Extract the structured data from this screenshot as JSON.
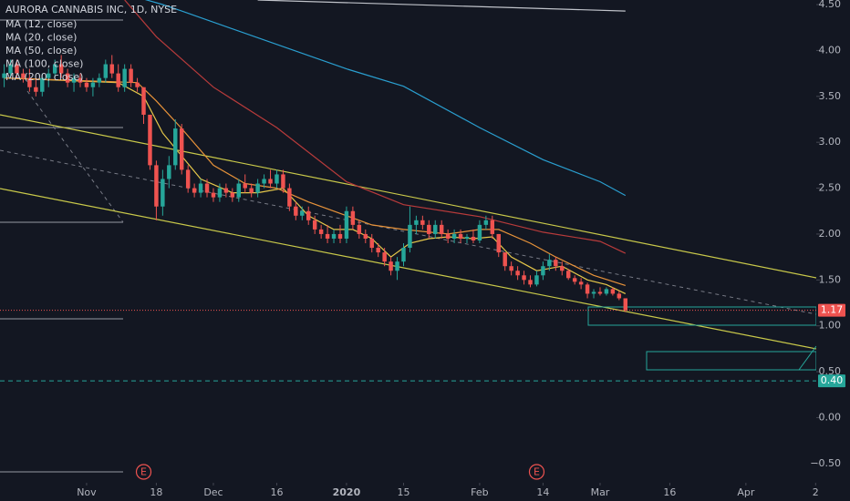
{
  "chart_data": {
    "type": "candlestick",
    "title": "AURORA CANNABIS INC, 1D, NYSE",
    "up_color": "#26a69a",
    "down_color": "#ef5350",
    "xlim": [
      -0.66,
      128.1
    ],
    "ylim": [
      -0.71,
      4.55
    ],
    "xticks": [
      {
        "value": 13,
        "label": "Nov"
      },
      {
        "value": 24,
        "label": "18"
      },
      {
        "value": 33,
        "label": "Dec"
      },
      {
        "value": 43,
        "label": "16"
      },
      {
        "value": 54,
        "label": "2020"
      },
      {
        "value": 63,
        "label": "15"
      },
      {
        "value": 75,
        "label": "Feb"
      },
      {
        "value": 85,
        "label": "14"
      },
      {
        "value": 94,
        "label": "Mar"
      },
      {
        "value": 105,
        "label": "16"
      },
      {
        "value": 117,
        "label": "Apr"
      },
      {
        "value": 128,
        "label": "2"
      }
    ],
    "yticks": [
      {
        "value": 4.5,
        "label": "4.50"
      },
      {
        "value": 4,
        "label": "4.00"
      },
      {
        "value": 3.5,
        "label": "3.50"
      },
      {
        "value": 3,
        "label": "3.00"
      },
      {
        "value": 2.5,
        "label": "2.50"
      },
      {
        "value": 2,
        "label": "2.00"
      },
      {
        "value": 1.5,
        "label": "1.50"
      },
      {
        "value": 1,
        "label": "1.00"
      },
      {
        "value": 0.5,
        "label": "0.50"
      },
      {
        "value": 0,
        "label": "0.00"
      },
      {
        "value": -0.5,
        "label": "−0.50"
      }
    ],
    "price_lines": [
      {
        "value": 1.17,
        "label": "1.17",
        "color": "#ef5350"
      },
      {
        "value": 0.4,
        "label": "0.40",
        "color": "#26a69a"
      }
    ],
    "events": [
      {
        "x": 22,
        "label": "E"
      },
      {
        "x": 84,
        "label": "E"
      }
    ],
    "ohlc": [
      [
        3.7,
        3.85,
        3.6,
        3.75
      ],
      [
        3.75,
        3.9,
        3.7,
        3.85
      ],
      [
        3.85,
        3.9,
        3.7,
        3.75
      ],
      [
        3.75,
        3.8,
        3.65,
        3.7
      ],
      [
        3.7,
        3.8,
        3.55,
        3.6
      ],
      [
        3.6,
        3.7,
        3.5,
        3.55
      ],
      [
        3.55,
        3.75,
        3.5,
        3.7
      ],
      [
        3.7,
        3.8,
        3.6,
        3.75
      ],
      [
        3.75,
        3.9,
        3.7,
        3.85
      ],
      [
        3.85,
        3.95,
        3.7,
        3.75
      ],
      [
        3.75,
        3.8,
        3.6,
        3.65
      ],
      [
        3.65,
        3.75,
        3.55,
        3.7
      ],
      [
        3.7,
        3.75,
        3.6,
        3.65
      ],
      [
        3.65,
        3.7,
        3.55,
        3.6
      ],
      [
        3.6,
        3.7,
        3.5,
        3.65
      ],
      [
        3.65,
        3.75,
        3.6,
        3.7
      ],
      [
        3.7,
        3.9,
        3.65,
        3.85
      ],
      [
        3.85,
        3.95,
        3.7,
        3.75
      ],
      [
        3.75,
        3.85,
        3.55,
        3.6
      ],
      [
        3.6,
        3.85,
        3.55,
        3.8
      ],
      [
        3.8,
        3.85,
        3.6,
        3.65
      ],
      [
        3.65,
        3.7,
        3.55,
        3.6
      ],
      [
        3.6,
        3.6,
        3.2,
        3.3
      ],
      [
        3.3,
        3.3,
        2.7,
        2.75
      ],
      [
        2.75,
        2.8,
        2.15,
        2.3
      ],
      [
        2.3,
        2.7,
        2.2,
        2.6
      ],
      [
        2.6,
        2.85,
        2.5,
        2.75
      ],
      [
        2.75,
        3.25,
        2.7,
        3.15
      ],
      [
        3.15,
        3.2,
        2.65,
        2.7
      ],
      [
        2.7,
        2.75,
        2.45,
        2.5
      ],
      [
        2.5,
        2.55,
        2.4,
        2.45
      ],
      [
        2.45,
        2.6,
        2.4,
        2.55
      ],
      [
        2.55,
        2.6,
        2.4,
        2.45
      ],
      [
        2.45,
        2.5,
        2.35,
        2.4
      ],
      [
        2.4,
        2.55,
        2.35,
        2.5
      ],
      [
        2.5,
        2.55,
        2.4,
        2.45
      ],
      [
        2.45,
        2.5,
        2.35,
        2.4
      ],
      [
        2.4,
        2.6,
        2.35,
        2.55
      ],
      [
        2.55,
        2.65,
        2.45,
        2.5
      ],
      [
        2.5,
        2.55,
        2.4,
        2.45
      ],
      [
        2.45,
        2.6,
        2.4,
        2.55
      ],
      [
        2.55,
        2.65,
        2.5,
        2.6
      ],
      [
        2.6,
        2.7,
        2.5,
        2.55
      ],
      [
        2.55,
        2.7,
        2.5,
        2.65
      ],
      [
        2.65,
        2.7,
        2.45,
        2.5
      ],
      [
        2.5,
        2.55,
        2.25,
        2.3
      ],
      [
        2.3,
        2.35,
        2.15,
        2.2
      ],
      [
        2.2,
        2.3,
        2.15,
        2.25
      ],
      [
        2.25,
        2.3,
        2.1,
        2.15
      ],
      [
        2.15,
        2.2,
        2.0,
        2.05
      ],
      [
        2.05,
        2.1,
        1.95,
        2.0
      ],
      [
        2.0,
        2.1,
        1.9,
        1.95
      ],
      [
        1.95,
        2.05,
        1.9,
        2.0
      ],
      [
        2.0,
        2.1,
        1.9,
        1.95
      ],
      [
        1.95,
        2.3,
        1.9,
        2.25
      ],
      [
        2.25,
        2.3,
        2.05,
        2.1
      ],
      [
        2.1,
        2.15,
        1.95,
        2.0
      ],
      [
        2.0,
        2.05,
        1.9,
        1.95
      ],
      [
        1.95,
        2.0,
        1.8,
        1.85
      ],
      [
        1.85,
        1.9,
        1.75,
        1.8
      ],
      [
        1.8,
        1.85,
        1.65,
        1.7
      ],
      [
        1.7,
        1.75,
        1.55,
        1.6
      ],
      [
        1.6,
        1.75,
        1.5,
        1.7
      ],
      [
        1.7,
        1.9,
        1.65,
        1.85
      ],
      [
        1.85,
        2.3,
        1.8,
        2.1
      ],
      [
        2.1,
        2.2,
        2.0,
        2.15
      ],
      [
        2.15,
        2.2,
        2.05,
        2.1
      ],
      [
        2.1,
        2.15,
        1.95,
        2.0
      ],
      [
        2.0,
        2.15,
        1.95,
        2.1
      ],
      [
        2.1,
        2.15,
        1.95,
        2.0
      ],
      [
        2.0,
        2.05,
        1.9,
        1.95
      ],
      [
        1.95,
        2.05,
        1.9,
        2.0
      ],
      [
        2.0,
        2.05,
        1.9,
        1.95
      ],
      [
        1.95,
        2.0,
        1.9,
        1.97
      ],
      [
        1.97,
        2.05,
        1.9,
        1.93
      ],
      [
        1.93,
        2.15,
        1.9,
        2.1
      ],
      [
        2.1,
        2.2,
        2.05,
        2.15
      ],
      [
        2.15,
        2.2,
        1.95,
        2.0
      ],
      [
        2.0,
        2.0,
        1.75,
        1.8
      ],
      [
        1.8,
        1.8,
        1.6,
        1.65
      ],
      [
        1.65,
        1.7,
        1.55,
        1.6
      ],
      [
        1.6,
        1.65,
        1.5,
        1.55
      ],
      [
        1.55,
        1.6,
        1.45,
        1.5
      ],
      [
        1.5,
        1.55,
        1.42,
        1.45
      ],
      [
        1.45,
        1.6,
        1.43,
        1.55
      ],
      [
        1.55,
        1.7,
        1.5,
        1.65
      ],
      [
        1.65,
        1.78,
        1.6,
        1.72
      ],
      [
        1.72,
        1.75,
        1.6,
        1.65
      ],
      [
        1.65,
        1.7,
        1.55,
        1.6
      ],
      [
        1.6,
        1.62,
        1.5,
        1.52
      ],
      [
        1.52,
        1.55,
        1.45,
        1.48
      ],
      [
        1.48,
        1.52,
        1.4,
        1.45
      ],
      [
        1.45,
        1.47,
        1.3,
        1.35
      ],
      [
        1.35,
        1.4,
        1.3,
        1.37
      ],
      [
        1.37,
        1.42,
        1.33,
        1.35
      ],
      [
        1.35,
        1.42,
        1.33,
        1.4
      ],
      [
        1.4,
        1.42,
        1.33,
        1.35
      ],
      [
        1.35,
        1.38,
        1.28,
        1.3
      ],
      [
        1.3,
        1.3,
        1.15,
        1.17
      ]
    ],
    "moving_averages": [
      {
        "name": "MA (12, close)",
        "color": "#e6c84a",
        "x": [
          0,
          18,
          22,
          25,
          28,
          31,
          36,
          40,
          44,
          48,
          52,
          55,
          58,
          61,
          64,
          67,
          70,
          74,
          77,
          80,
          84,
          88,
          92,
          95,
          98
        ],
        "values": [
          3.7,
          3.65,
          3.5,
          3.1,
          2.85,
          2.6,
          2.45,
          2.45,
          2.5,
          2.2,
          2.05,
          2.05,
          1.95,
          1.75,
          1.9,
          1.95,
          1.97,
          1.95,
          1.97,
          1.75,
          1.6,
          1.65,
          1.5,
          1.45,
          1.35
        ]
      },
      {
        "name": "MA (20, close)",
        "color": "#e8933a",
        "x": [
          0,
          21,
          24,
          28,
          33,
          38,
          43,
          48,
          54,
          58,
          63,
          70,
          75,
          78,
          83,
          87,
          93,
          98
        ],
        "values": [
          3.7,
          3.65,
          3.45,
          3.15,
          2.75,
          2.55,
          2.5,
          2.35,
          2.2,
          2.1,
          2.05,
          2.0,
          2.05,
          2.05,
          1.9,
          1.75,
          1.55,
          1.44
        ]
      },
      {
        "name": "MA (50, close)",
        "color": "#b83b3b",
        "x": [
          19,
          24,
          33,
          43,
          54,
          63,
          75,
          85,
          94,
          98
        ],
        "values": [
          4.55,
          4.15,
          3.6,
          3.16,
          2.57,
          2.32,
          2.19,
          2.02,
          1.92,
          1.79
        ]
      },
      {
        "name": "MA (100, close)",
        "color": "#2a9fd0",
        "x": [
          21,
          25,
          28,
          54,
          63,
          75,
          85,
          94,
          98
        ],
        "values": [
          4.58,
          4.5,
          4.43,
          3.8,
          3.61,
          3.16,
          2.81,
          2.57,
          2.42
        ]
      },
      {
        "name": "MA (200, close)",
        "color": "#c0c3ca",
        "x": [
          40,
          98
        ],
        "values": [
          4.55,
          4.43
        ]
      }
    ]
  }
}
